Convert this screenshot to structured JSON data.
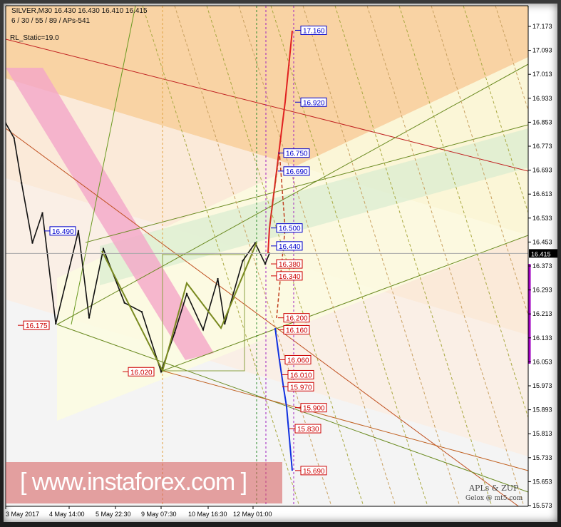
{
  "header": {
    "symbol_line": "SILVER,M30  16.430 16.430 16.410 16.415",
    "params_line": "6 / 30 / 55 / 89 / APs-541",
    "static_label": "RL_Static=19.0"
  },
  "watermark": "[  www.instaforex.com  ]",
  "signature": {
    "title": "APLs & ZUP",
    "credit": "Gelox @ mt5.com"
  },
  "chart_data": {
    "type": "line",
    "title": "SILVER,M30",
    "ohlc": {
      "open": 16.43,
      "high": 16.43,
      "low": 16.41,
      "close": 16.415
    },
    "current_price": 16.415,
    "ylim": [
      15.573,
      17.173
    ],
    "y_ticks": [
      "17.173",
      "17.093",
      "17.013",
      "16.933",
      "16.853",
      "16.773",
      "16.693",
      "16.613",
      "16.533",
      "16.453",
      "16.373",
      "16.293",
      "16.213",
      "16.133",
      "16.053",
      "15.973",
      "15.893",
      "15.813",
      "15.733",
      "15.653",
      "15.573"
    ],
    "x_ticks": [
      "3 May 2017",
      "4 May 14:00",
      "5 May 22:30",
      "9 May 07:30",
      "10 May 16:30",
      "12 May 01:00"
    ],
    "price_series": [
      [
        "2017-05-03 00:00",
        16.85
      ],
      [
        "2017-05-03 05:00",
        16.8
      ],
      [
        "2017-05-03 09:30",
        16.65
      ],
      [
        "2017-05-03 16:00",
        16.45
      ],
      [
        "2017-05-03 22:00",
        16.55
      ],
      [
        "2017-05-04 06:00",
        16.18
      ],
      [
        "2017-05-04 20:30",
        16.49
      ],
      [
        "2017-05-05 04:00",
        16.2
      ],
      [
        "2017-05-05 14:00",
        16.43
      ],
      [
        "2017-05-08 05:00",
        16.25
      ],
      [
        "2017-05-08 17:30",
        16.22
      ],
      [
        "2017-05-09 07:30",
        16.02
      ],
      [
        "2017-05-09 17:00",
        16.15
      ],
      [
        "2017-05-10 01:30",
        16.28
      ],
      [
        "2017-05-10 13:00",
        16.16
      ],
      [
        "2017-05-10 23:30",
        16.33
      ],
      [
        "2017-05-11 04:30",
        16.18
      ],
      [
        "2017-05-11 17:30",
        16.39
      ],
      [
        "2017-05-12 02:30",
        16.45
      ],
      [
        "2017-05-12 09:30",
        16.38
      ],
      [
        "2017-05-12 12:30",
        16.415
      ]
    ],
    "level_labels": [
      {
        "value": "17.160",
        "color": "blue"
      },
      {
        "value": "16.920",
        "color": "blue"
      },
      {
        "value": "16.750",
        "color": "blue"
      },
      {
        "value": "16.690",
        "color": "blue"
      },
      {
        "value": "16.500",
        "color": "blue"
      },
      {
        "value": "16.440",
        "color": "blue"
      },
      {
        "value": "16.380",
        "color": "red"
      },
      {
        "value": "16.340",
        "color": "red"
      },
      {
        "value": "16.200",
        "color": "red"
      },
      {
        "value": "16.160",
        "color": "red"
      },
      {
        "value": "16.060",
        "color": "red"
      },
      {
        "value": "16.010",
        "color": "red"
      },
      {
        "value": "15.970",
        "color": "red"
      },
      {
        "value": "15.900",
        "color": "red"
      },
      {
        "value": "15.830",
        "color": "red"
      },
      {
        "value": "15.690",
        "color": "red"
      }
    ],
    "pivot_labels": [
      {
        "value": "16.490",
        "color": "blue"
      },
      {
        "value": "16.175",
        "color": "red"
      },
      {
        "value": "16.020",
        "color": "red"
      }
    ],
    "colors": {
      "blue": "#0000cc",
      "red": "#cc0000",
      "band_orange": "#fbc88a",
      "band_pink": "#f4a6c8",
      "band_green": "#d9ecd0"
    }
  }
}
